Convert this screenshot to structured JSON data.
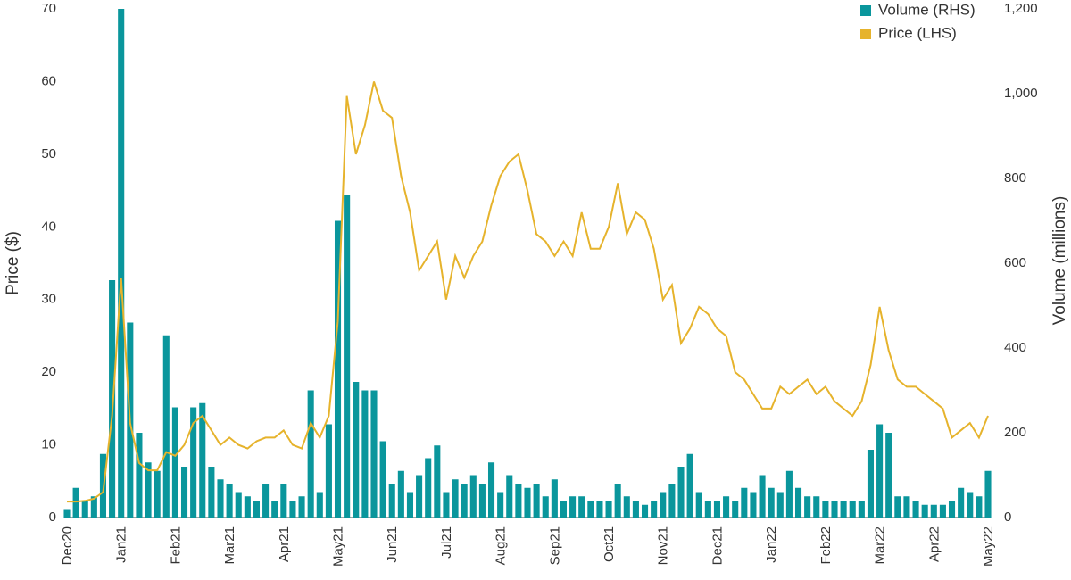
{
  "chart_data": {
    "type": "bar",
    "y_label": "Price ($)",
    "y2_label": "Volume (millions)",
    "categories": [
      "Dec20",
      null,
      null,
      null,
      null,
      null,
      "Jan21",
      null,
      null,
      null,
      null,
      null,
      "Feb21",
      null,
      null,
      null,
      null,
      null,
      "Mar21",
      null,
      null,
      null,
      null,
      null,
      "Apr21",
      null,
      null,
      null,
      null,
      null,
      "May21",
      null,
      null,
      null,
      null,
      null,
      "Jun21",
      null,
      null,
      null,
      null,
      null,
      "Jul21",
      null,
      null,
      null,
      null,
      null,
      "Aug21",
      null,
      null,
      null,
      null,
      null,
      "Sep21",
      null,
      null,
      null,
      null,
      null,
      "Oct21",
      null,
      null,
      null,
      null,
      null,
      "Nov21",
      null,
      null,
      null,
      null,
      null,
      "Dec21",
      null,
      null,
      null,
      null,
      null,
      "Jan22",
      null,
      null,
      null,
      null,
      null,
      "Feb22",
      null,
      null,
      null,
      null,
      null,
      "Mar22",
      null,
      null,
      null,
      null,
      null,
      "Apr22",
      null,
      null,
      null,
      null,
      null,
      "May22"
    ],
    "series": [
      {
        "name": "Volume (RHS)",
        "type": "bar",
        "axis": "y2",
        "color": "#0a969c",
        "values": [
          20,
          70,
          40,
          50,
          150,
          560,
          1200,
          460,
          200,
          130,
          110,
          430,
          260,
          120,
          260,
          270,
          120,
          90,
          80,
          60,
          50,
          40,
          80,
          40,
          80,
          40,
          50,
          300,
          60,
          220,
          700,
          760,
          320,
          300,
          300,
          180,
          80,
          110,
          60,
          100,
          140,
          170,
          60,
          90,
          80,
          100,
          80,
          130,
          60,
          100,
          80,
          70,
          80,
          50,
          90,
          40,
          50,
          50,
          40,
          40,
          40,
          80,
          50,
          40,
          30,
          40,
          60,
          80,
          120,
          150,
          60,
          40,
          40,
          50,
          40,
          70,
          60,
          100,
          70,
          60,
          110,
          70,
          50,
          50,
          40,
          40,
          40,
          40,
          40,
          160,
          220,
          200,
          50,
          50,
          40,
          30,
          30,
          30,
          40,
          70,
          60,
          50,
          110
        ]
      },
      {
        "name": "Price (LHS)",
        "type": "line",
        "color": "#e6b32c",
        "values": [
          2.2,
          2.2,
          2.3,
          2.6,
          3.5,
          14,
          33,
          13,
          7.5,
          6.5,
          6.5,
          9,
          8.5,
          10,
          13,
          14,
          12,
          10,
          11,
          10,
          9.5,
          10.5,
          11,
          11,
          12,
          10,
          9.5,
          13,
          11,
          14,
          27,
          58,
          50,
          54,
          60,
          56,
          55,
          47,
          42,
          34,
          36,
          38,
          30,
          36,
          33,
          36,
          38,
          43,
          47,
          49,
          50,
          45,
          39,
          38,
          36,
          38,
          36,
          42,
          37,
          37,
          40,
          46,
          39,
          42,
          41,
          37,
          30,
          32,
          24,
          26,
          29,
          28,
          26,
          25,
          20,
          19,
          17,
          15,
          15,
          18,
          17,
          18,
          19,
          17,
          18,
          16,
          15,
          14,
          16,
          21,
          29,
          23,
          19,
          18,
          18,
          17,
          16,
          15,
          11,
          12,
          13,
          11,
          14
        ]
      }
    ],
    "ylim": [
      0,
      70
    ],
    "yticks": [
      0,
      10,
      20,
      30,
      40,
      50,
      60,
      70
    ],
    "y2lim": [
      0,
      1200
    ],
    "y2ticks": [
      0,
      200,
      400,
      600,
      800,
      {
        "value": 1000,
        "label": "1,000"
      },
      {
        "value": 1200,
        "label": "1,200"
      }
    ]
  }
}
